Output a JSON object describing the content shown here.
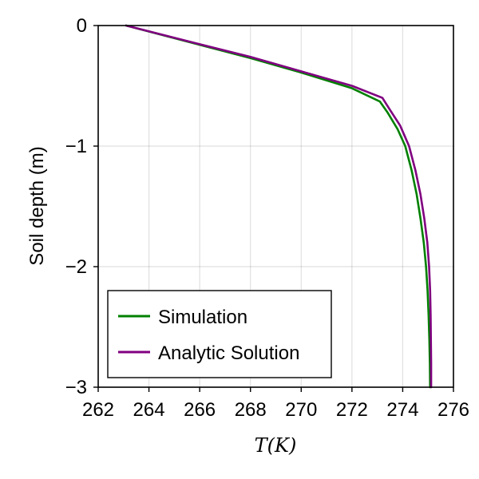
{
  "chart_data": {
    "type": "line",
    "title": "",
    "xlabel": "T(K)",
    "ylabel": "Soil depth (m)",
    "xlim": [
      262,
      276
    ],
    "ylim": [
      -3,
      0
    ],
    "x_ticks": [
      262,
      264,
      266,
      268,
      270,
      272,
      274,
      276
    ],
    "y_ticks": [
      0,
      -1,
      -2,
      -3
    ],
    "y_tick_labels": [
      "0",
      "−1",
      "−2",
      "−3"
    ],
    "grid": true,
    "legend_position": "bottom-left",
    "series": [
      {
        "name": "Simulation",
        "color": "#008000",
        "points": [
          [
            263.1,
            0.0
          ],
          [
            266.0,
            -0.16
          ],
          [
            268.0,
            -0.27
          ],
          [
            270.0,
            -0.39
          ],
          [
            272.0,
            -0.52
          ],
          [
            273.1,
            -0.63
          ],
          [
            273.4,
            -0.72
          ],
          [
            273.8,
            -0.86
          ],
          [
            274.1,
            -1.0
          ],
          [
            274.35,
            -1.2
          ],
          [
            274.55,
            -1.4
          ],
          [
            274.7,
            -1.6
          ],
          [
            274.83,
            -1.8
          ],
          [
            274.92,
            -2.0
          ],
          [
            274.98,
            -2.2
          ],
          [
            275.02,
            -2.4
          ],
          [
            275.05,
            -2.6
          ],
          [
            275.07,
            -2.8
          ],
          [
            275.08,
            -3.0
          ]
        ]
      },
      {
        "name": "Analytic Solution",
        "color": "#800080",
        "points": [
          [
            263.1,
            0.0
          ],
          [
            266.0,
            -0.155
          ],
          [
            268.0,
            -0.26
          ],
          [
            270.0,
            -0.38
          ],
          [
            272.0,
            -0.5
          ],
          [
            273.2,
            -0.6
          ],
          [
            273.5,
            -0.7
          ],
          [
            273.9,
            -0.83
          ],
          [
            274.25,
            -1.0
          ],
          [
            274.5,
            -1.2
          ],
          [
            274.7,
            -1.4
          ],
          [
            274.85,
            -1.6
          ],
          [
            274.97,
            -1.8
          ],
          [
            275.04,
            -2.0
          ],
          [
            275.08,
            -2.2
          ],
          [
            275.1,
            -2.4
          ],
          [
            275.11,
            -2.6
          ],
          [
            275.12,
            -2.8
          ],
          [
            275.12,
            -3.0
          ]
        ]
      }
    ]
  }
}
